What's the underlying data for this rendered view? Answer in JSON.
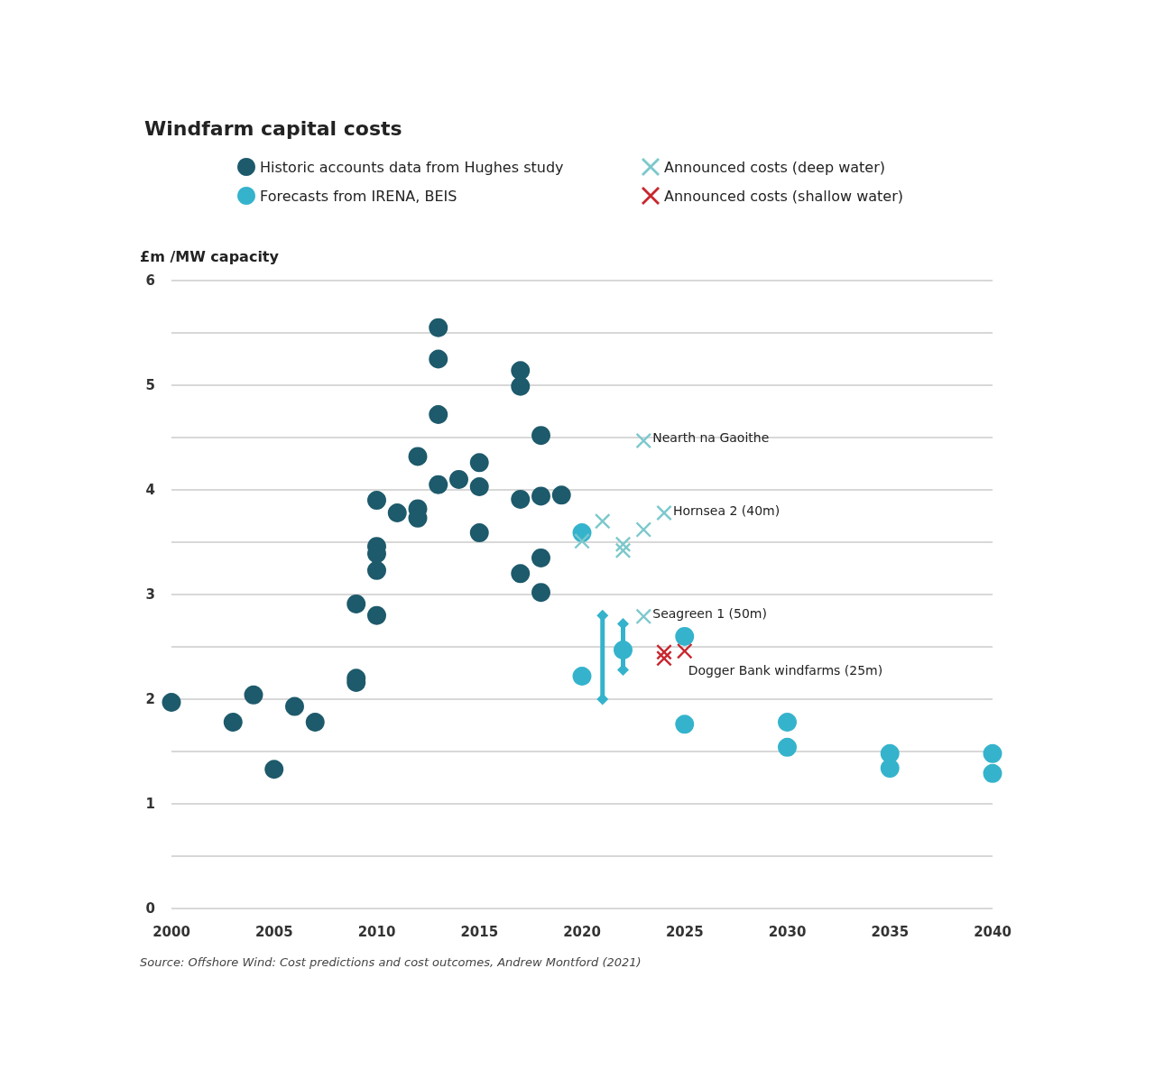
{
  "chart_data": {
    "type": "scatter",
    "title": "Windfarm capital costs",
    "ylabel": "£m /MW capacity",
    "xlim": [
      2000,
      2040
    ],
    "xticks": [
      2000,
      2005,
      2010,
      2015,
      2020,
      2025,
      2030,
      2035,
      2040
    ],
    "ylim": [
      0,
      6
    ],
    "yticks": [
      0,
      {
        "value": 0.5,
        "label": null
      },
      1,
      {
        "value": 1.5,
        "label": null
      },
      2,
      {
        "value": 2.5,
        "label": null
      },
      3,
      {
        "value": 3.5,
        "label": null
      },
      4,
      {
        "value": 4.5,
        "label": null
      },
      5,
      {
        "value": 5.5,
        "label": null
      },
      6
    ],
    "grid": "y",
    "legend": "top",
    "series": [
      {
        "name": "Historic accounts data from Hughes study",
        "color": "#1d5a6b",
        "marker": "circle",
        "x": [
          2000,
          2003,
          2004,
          2005,
          2006,
          2007,
          2009,
          2009,
          2009,
          2010,
          2010,
          2010,
          2010,
          2010,
          2011,
          2012,
          2012,
          2012,
          2013,
          2013,
          2013,
          2013,
          2014,
          2015,
          2015,
          2015,
          2017,
          2017,
          2017,
          2017,
          2018,
          2018,
          2018,
          2018,
          2019
        ],
        "values": [
          1.97,
          1.78,
          2.04,
          1.33,
          1.93,
          1.78,
          2.2,
          2.16,
          2.91,
          2.8,
          3.9,
          3.46,
          3.39,
          3.23,
          3.78,
          3.82,
          3.73,
          4.32,
          4.05,
          4.72,
          5.25,
          5.55,
          4.1,
          4.26,
          4.03,
          3.59,
          5.14,
          4.99,
          3.91,
          3.2,
          4.52,
          3.94,
          3.35,
          3.02,
          3.95
        ]
      },
      {
        "name": "Forecasts from IRENA, BEIS",
        "color": "#35b3cc",
        "marker": "circle",
        "x": [
          2020,
          2020,
          2022,
          2025,
          2025,
          2030,
          2030,
          2035,
          2035,
          2040,
          2040
        ],
        "values": [
          3.59,
          2.22,
          2.47,
          2.6,
          1.76,
          1.78,
          1.54,
          1.48,
          1.34,
          1.48,
          1.29
        ]
      },
      {
        "type": "line",
        "color": "#35b3cc",
        "marker": "diamond",
        "line_style": "solid",
        "x": [
          2021,
          2021
        ],
        "values": [
          2.0,
          2.8
        ]
      },
      {
        "type": "line",
        "color": "#35b3cc",
        "marker": "diamond",
        "line_style": "solid",
        "x": [
          2022,
          2022
        ],
        "values": [
          2.28,
          2.72
        ]
      },
      {
        "name": "Announced costs (deep water)",
        "color": "#7cc8cc",
        "marker": "cross",
        "x": [
          2020,
          2021,
          2022,
          2022,
          2023,
          2024,
          2023,
          2023
        ],
        "values": [
          3.51,
          3.7,
          3.48,
          3.42,
          3.62,
          3.78,
          4.47,
          2.79
        ]
      },
      {
        "name": "Announced costs (shallow water)",
        "color": "#c8262e",
        "marker": "cross",
        "x": [
          2024,
          2024,
          2025
        ],
        "values": [
          2.45,
          2.39,
          2.46
        ]
      }
    ],
    "annotations": [
      {
        "text": "Nearth na Gaoithe",
        "x": 2023,
        "y": 4.47
      },
      {
        "text": "Hornsea 2 (40m)",
        "x": 2024,
        "y": 3.78
      },
      {
        "text": "Seagreen 1 (50m)",
        "x": 2023,
        "y": 2.79
      },
      {
        "text": "Dogger Bank windfarms (25m)",
        "x": 2025,
        "y": 2.46
      },
      "Source: Offshore Wind: Cost predictions and cost outcomes, Andrew Montford (2021)"
    ]
  }
}
